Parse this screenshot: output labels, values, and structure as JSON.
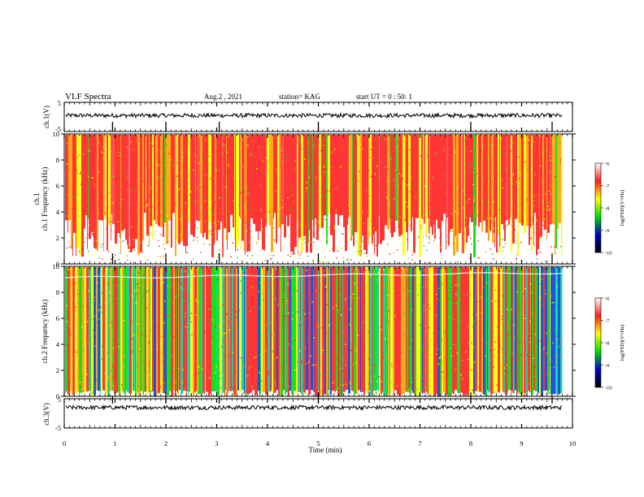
{
  "header": {
    "title": "VLF Spectra",
    "date": "Aug.2 , 2021",
    "station": "station= KAG",
    "start": "start UT = 0 : 50: 1"
  },
  "chart_data": [
    {
      "type": "line",
      "ylabel": "ch.1(V)",
      "ylim": [
        -5,
        5
      ],
      "yticks": [
        "5",
        "-5"
      ],
      "approx_level": 0.5
    },
    {
      "type": "heatmap",
      "ylabel": "ch.1 Frequency (kHz)",
      "ylim": [
        0,
        10
      ],
      "yticks": [
        "0",
        "2",
        "4",
        "6",
        "8",
        "10"
      ],
      "colorbar": {
        "label": "log(PSD)(V²/Hz)",
        "range": [
          -10,
          -6
        ],
        "ticks": [
          "-6",
          "-7",
          "-8",
          "-9",
          "-10"
        ],
        "colors": [
          "#ffffff",
          "#ff2020",
          "#ffff00",
          "#00dd00",
          "#0000cc",
          "#000000"
        ]
      }
    },
    {
      "type": "heatmap",
      "ylabel": "ch.2 Frequency (kHz)",
      "ylim": [
        0,
        10
      ],
      "yticks": [
        "0",
        "2",
        "4",
        "6",
        "8",
        "10"
      ],
      "colorbar": {
        "label": "log(PSD)(V²/Hz)",
        "range": [
          -10,
          -6
        ],
        "ticks": [
          "-6",
          "-7",
          "-8",
          "-9",
          "-10"
        ],
        "colors": [
          "#ffffff",
          "#ff2020",
          "#ffff00",
          "#00dd00",
          "#0000cc",
          "#000000"
        ]
      }
    },
    {
      "type": "line",
      "ylabel": "ch.3(V)",
      "ylim": [
        -5,
        5
      ],
      "yticks": [
        "5",
        "-5"
      ],
      "approx_level": 2.0
    }
  ],
  "xaxis": {
    "label": "Time (min)",
    "xlim": [
      0,
      10
    ],
    "ticks": [
      "0",
      "1",
      "2",
      "3",
      "4",
      "5",
      "6",
      "7",
      "8",
      "9",
      "10"
    ],
    "data_end": 9.8
  }
}
